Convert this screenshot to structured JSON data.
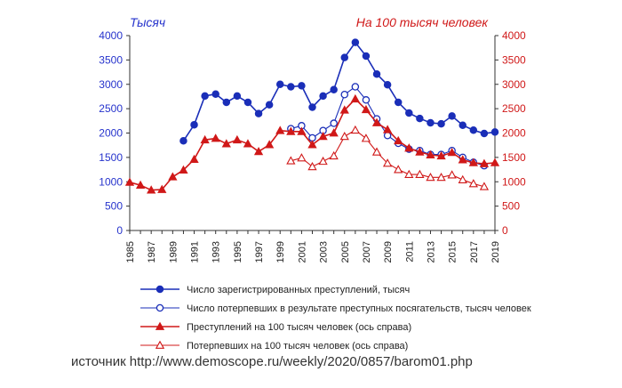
{
  "source_text": "источник http://www.demoscope.ru/weekly/2020/0857/barom01.php",
  "chart_data": {
    "type": "line",
    "left_axis_label": "Тысяч",
    "right_axis_label": "На 100 тысяч человек",
    "left_color": "#2633cc",
    "right_color": "#d01818",
    "x_tick_labels": [
      "1985",
      "1987",
      "1989",
      "1991",
      "1993",
      "1995",
      "1997",
      "1999",
      "2001",
      "2003",
      "2005",
      "2007",
      "2009",
      "2011",
      "2013",
      "2015",
      "2017",
      "2019"
    ],
    "xlim": [
      1985,
      2019
    ],
    "ylim_left": [
      0,
      4000
    ],
    "ylim_right": [
      0,
      4000
    ],
    "y_ticks": [
      "0",
      "500",
      "1000",
      "1500",
      "2000",
      "2500",
      "3000",
      "3500",
      "4000"
    ],
    "grid": false,
    "legend_position": "bottom",
    "series": [
      {
        "name": "Число  зарегистрированных преступлений, тысяч",
        "axis": "left",
        "color": "#1a2eb8",
        "marker": "filled-circle",
        "x": [
          1990,
          1991,
          1992,
          1993,
          1994,
          1995,
          1996,
          1997,
          1998,
          1999,
          2000,
          2001,
          2002,
          2003,
          2004,
          2005,
          2006,
          2007,
          2008,
          2009,
          2010,
          2011,
          2012,
          2013,
          2014,
          2015,
          2016,
          2017,
          2018,
          2019
        ],
        "y": [
          1840,
          2170,
          2760,
          2800,
          2630,
          2760,
          2630,
          2400,
          2580,
          3000,
          2950,
          2970,
          2530,
          2760,
          2890,
          3550,
          3860,
          3580,
          3210,
          2990,
          2630,
          2410,
          2300,
          2210,
          2190,
          2350,
          2160,
          2060,
          1990,
          2020
        ]
      },
      {
        "name": "Число  потерпевших в результате преступных посягательств, тысяч человек",
        "axis": "left",
        "color": "#1a2eb8",
        "marker": "open-circle",
        "x": [
          2000,
          2001,
          2002,
          2003,
          2004,
          2005,
          2006,
          2007,
          2008,
          2009,
          2010,
          2011,
          2012,
          2013,
          2014,
          2015,
          2016,
          2017,
          2018
        ],
        "y": [
          2090,
          2150,
          1900,
          2050,
          2200,
          2790,
          2950,
          2680,
          2290,
          1950,
          1790,
          1670,
          1640,
          1560,
          1560,
          1640,
          1500,
          1400,
          1330
        ]
      },
      {
        "name": "Преступлений на 100 тысяч человек (ось справа)",
        "axis": "right",
        "color": "#d01818",
        "marker": "filled-triangle",
        "x": [
          1985,
          1986,
          1987,
          1988,
          1989,
          1990,
          1991,
          1992,
          1993,
          1994,
          1995,
          1996,
          1997,
          1998,
          1999,
          2000,
          2001,
          2002,
          2003,
          2004,
          2005,
          2006,
          2007,
          2008,
          2009,
          2010,
          2011,
          2012,
          2013,
          2014,
          2015,
          2016,
          2017,
          2018,
          2019
        ],
        "y": [
          990,
          930,
          830,
          840,
          1100,
          1240,
          1460,
          1860,
          1890,
          1780,
          1860,
          1780,
          1620,
          1760,
          2050,
          2030,
          2030,
          1760,
          1930,
          2000,
          2470,
          2700,
          2480,
          2210,
          2070,
          1840,
          1690,
          1610,
          1550,
          1530,
          1600,
          1450,
          1390,
          1370,
          1390
        ]
      },
      {
        "name": "Потерпевших на 100 тысяч человек (ось справа)",
        "axis": "right",
        "color": "#d01818",
        "marker": "open-triangle",
        "x": [
          2000,
          2001,
          2002,
          2003,
          2004,
          2005,
          2006,
          2007,
          2008,
          2009,
          2010,
          2011,
          2012,
          2013,
          2014,
          2015,
          2016,
          2017,
          2018
        ],
        "y": [
          1430,
          1490,
          1310,
          1420,
          1530,
          1930,
          2060,
          1890,
          1610,
          1380,
          1250,
          1150,
          1150,
          1090,
          1090,
          1140,
          1040,
          960,
          900
        ]
      }
    ]
  }
}
